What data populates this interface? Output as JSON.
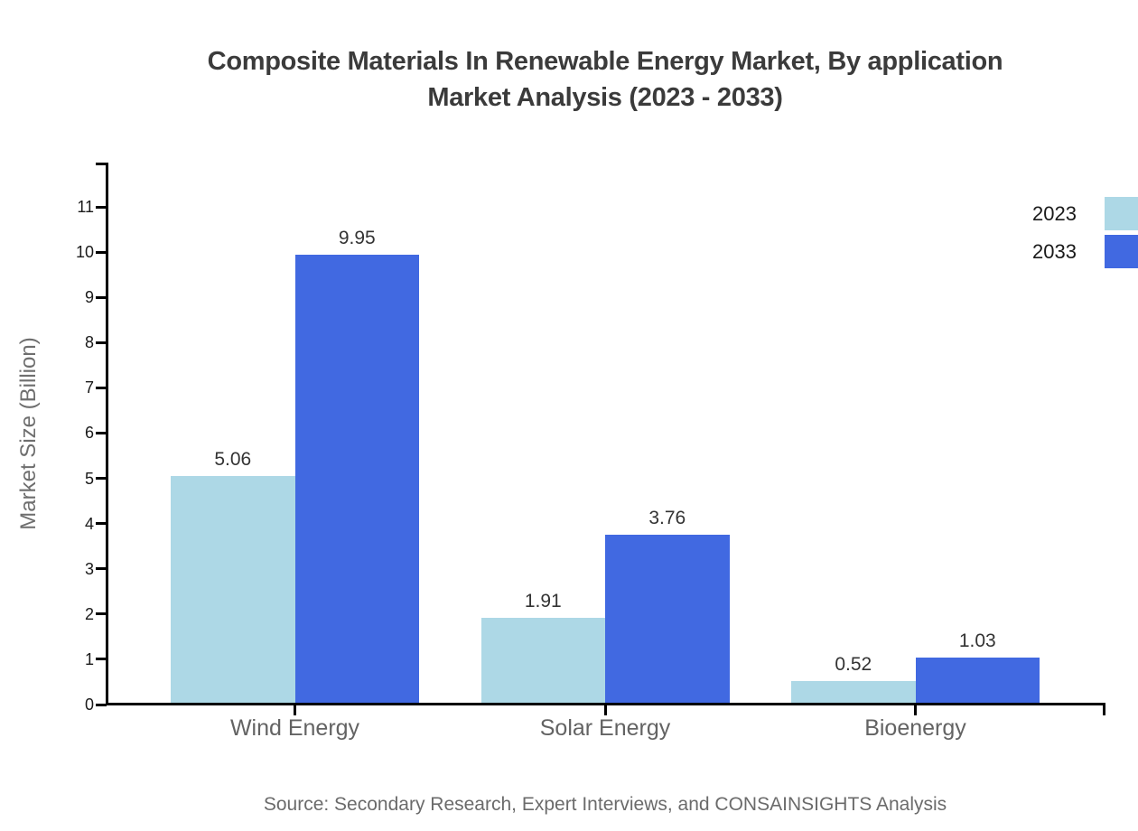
{
  "header": {
    "title_line1": "Composite Materials In Renewable Energy Market, By application",
    "title_line2": "Market Analysis (2023 - 2033)"
  },
  "footer": {
    "source_text": "Source: Secondary Research, Expert Interviews, and CONSAINSIGHTS Analysis"
  },
  "chart_data": {
    "type": "bar",
    "title": "Composite Materials In Renewable Energy Market, By application Market Analysis (2023 - 2033)",
    "ylabel": "Market Size (Billion)",
    "xlabel": "",
    "categories": [
      "Wind Energy",
      "Solar Energy",
      "Bioenergy"
    ],
    "series": [
      {
        "name": "2023",
        "color": "#ADD8E6",
        "values": [
          5.06,
          1.91,
          0.52
        ]
      },
      {
        "name": "2033",
        "color": "#4169E1",
        "values": [
          9.95,
          3.76,
          1.03
        ]
      }
    ],
    "ylim": [
      0,
      11
    ],
    "yticks": [
      0,
      1,
      2,
      3,
      4,
      5,
      6,
      7,
      8,
      9,
      10,
      11
    ],
    "value_labels_shown": true,
    "grid": false,
    "legend_position": "top-right"
  },
  "colors": {
    "series_2023": "#ADD8E6",
    "series_2033": "#4169E1",
    "axis_line": "#000000",
    "title_text": "#3b3b3b",
    "ytick_text": "#1a1a1a",
    "value_label_text": "#333333",
    "category_text": "#636363",
    "source_text": "#6b6b6b",
    "ylabel_text": "#6e6e6e",
    "legend_text": "#1a1a1a",
    "background": "#ffffff"
  }
}
